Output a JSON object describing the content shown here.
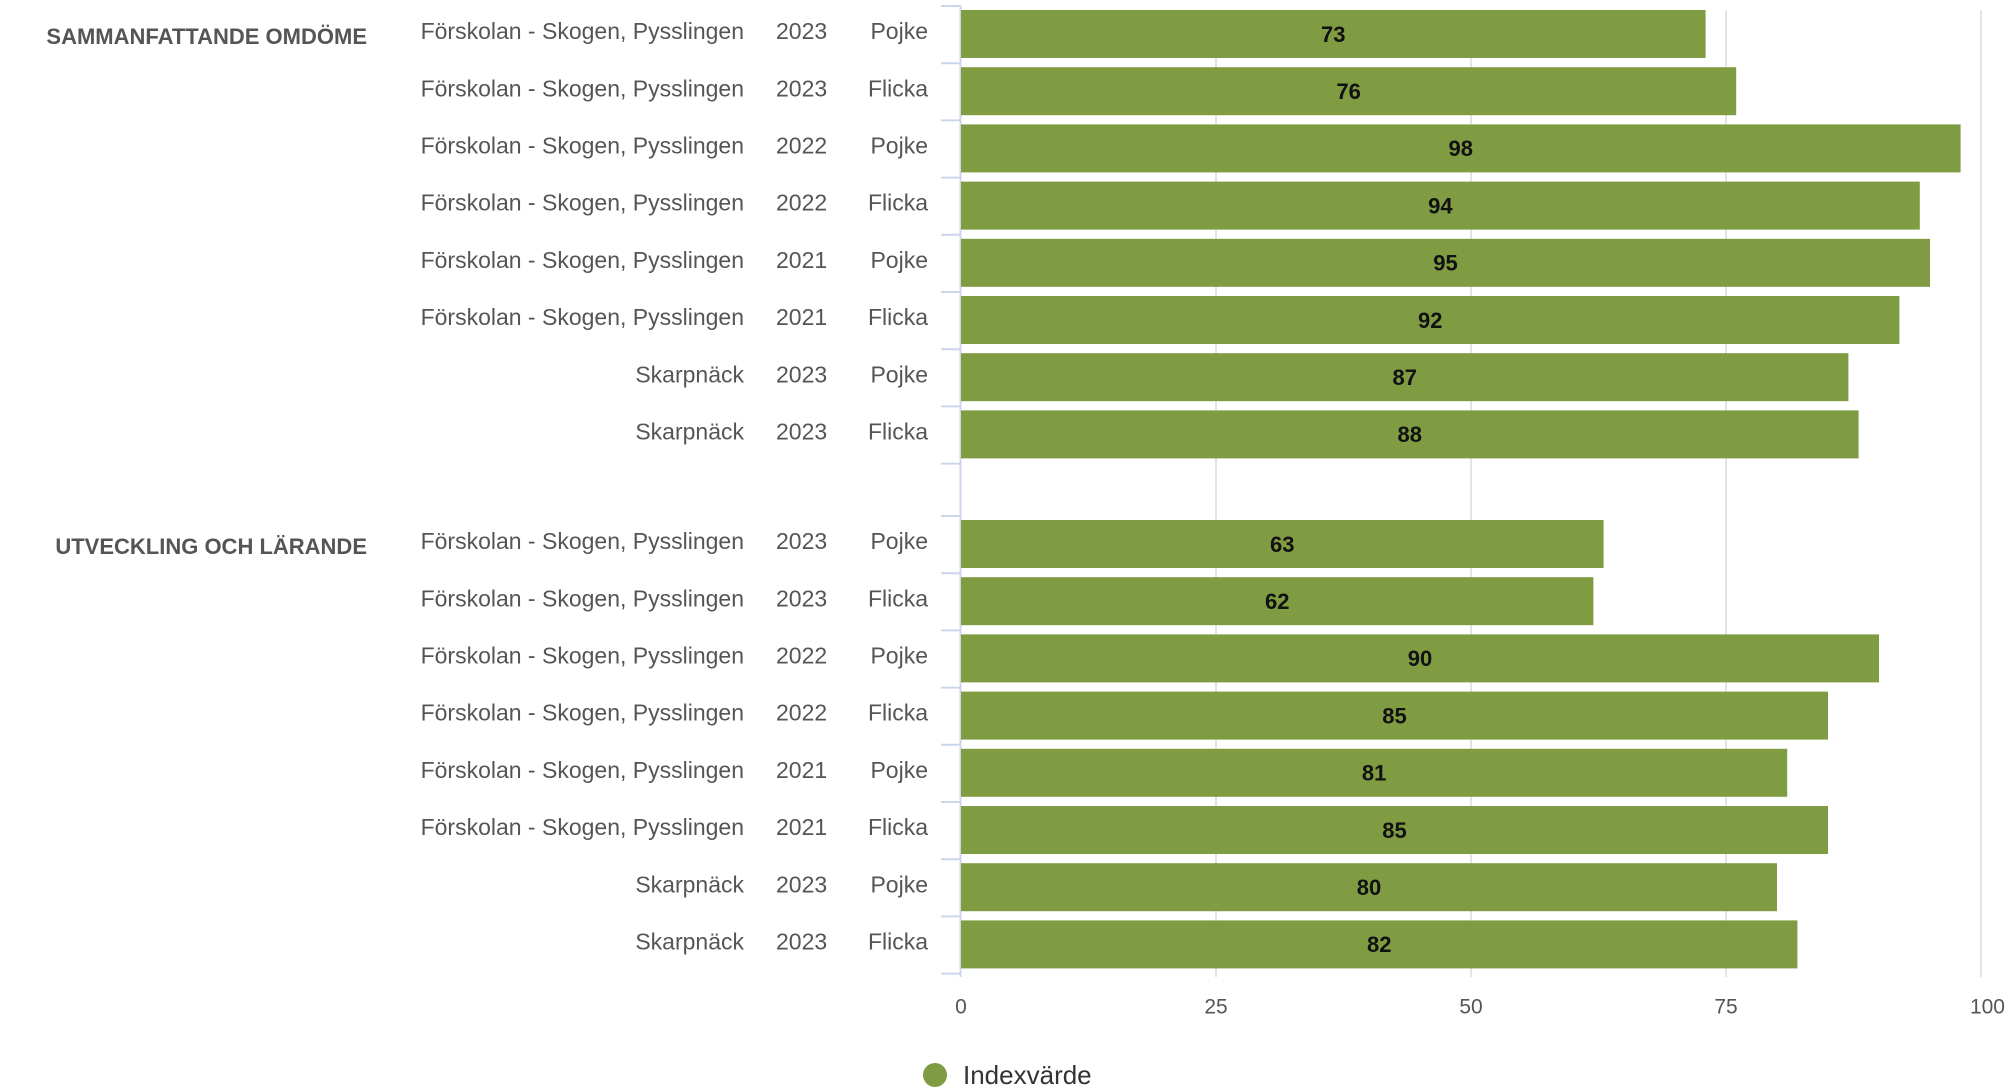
{
  "chart_data": {
    "type": "bar",
    "orientation": "horizontal",
    "xlim": [
      0,
      100
    ],
    "ticks": [
      0,
      25,
      50,
      75,
      100
    ],
    "grid": true,
    "legend_position": "bottom-center",
    "series": [
      {
        "name": "Indexvärde",
        "color": "#809c43"
      }
    ],
    "groups": [
      {
        "label": "SAMMANFATTANDE OMDÖME",
        "rows": [
          {
            "unit": "Förskolan - Skogen, Pysslingen",
            "year": "2023",
            "gender": "Pojke",
            "value": 73
          },
          {
            "unit": "Förskolan - Skogen, Pysslingen",
            "year": "2023",
            "gender": "Flicka",
            "value": 76
          },
          {
            "unit": "Förskolan - Skogen, Pysslingen",
            "year": "2022",
            "gender": "Pojke",
            "value": 98
          },
          {
            "unit": "Förskolan - Skogen, Pysslingen",
            "year": "2022",
            "gender": "Flicka",
            "value": 94
          },
          {
            "unit": "Förskolan - Skogen, Pysslingen",
            "year": "2021",
            "gender": "Pojke",
            "value": 95
          },
          {
            "unit": "Förskolan - Skogen, Pysslingen",
            "year": "2021",
            "gender": "Flicka",
            "value": 92
          },
          {
            "unit": "Skarpnäck",
            "year": "2023",
            "gender": "Pojke",
            "value": 87
          },
          {
            "unit": "Skarpnäck",
            "year": "2023",
            "gender": "Flicka",
            "value": 88
          }
        ]
      },
      {
        "label": "UTVECKLING OCH LÄRANDE",
        "rows": [
          {
            "unit": "Förskolan - Skogen, Pysslingen",
            "year": "2023",
            "gender": "Pojke",
            "value": 63
          },
          {
            "unit": "Förskolan - Skogen, Pysslingen",
            "year": "2023",
            "gender": "Flicka",
            "value": 62
          },
          {
            "unit": "Förskolan - Skogen, Pysslingen",
            "year": "2022",
            "gender": "Pojke",
            "value": 90
          },
          {
            "unit": "Förskolan - Skogen, Pysslingen",
            "year": "2022",
            "gender": "Flicka",
            "value": 85
          },
          {
            "unit": "Förskolan - Skogen, Pysslingen",
            "year": "2021",
            "gender": "Pojke",
            "value": 81
          },
          {
            "unit": "Förskolan - Skogen, Pysslingen",
            "year": "2021",
            "gender": "Flicka",
            "value": 85
          },
          {
            "unit": "Skarpnäck",
            "year": "2023",
            "gender": "Pojke",
            "value": 80
          },
          {
            "unit": "Skarpnäck",
            "year": "2023",
            "gender": "Flicka",
            "value": 82
          }
        ]
      }
    ]
  }
}
